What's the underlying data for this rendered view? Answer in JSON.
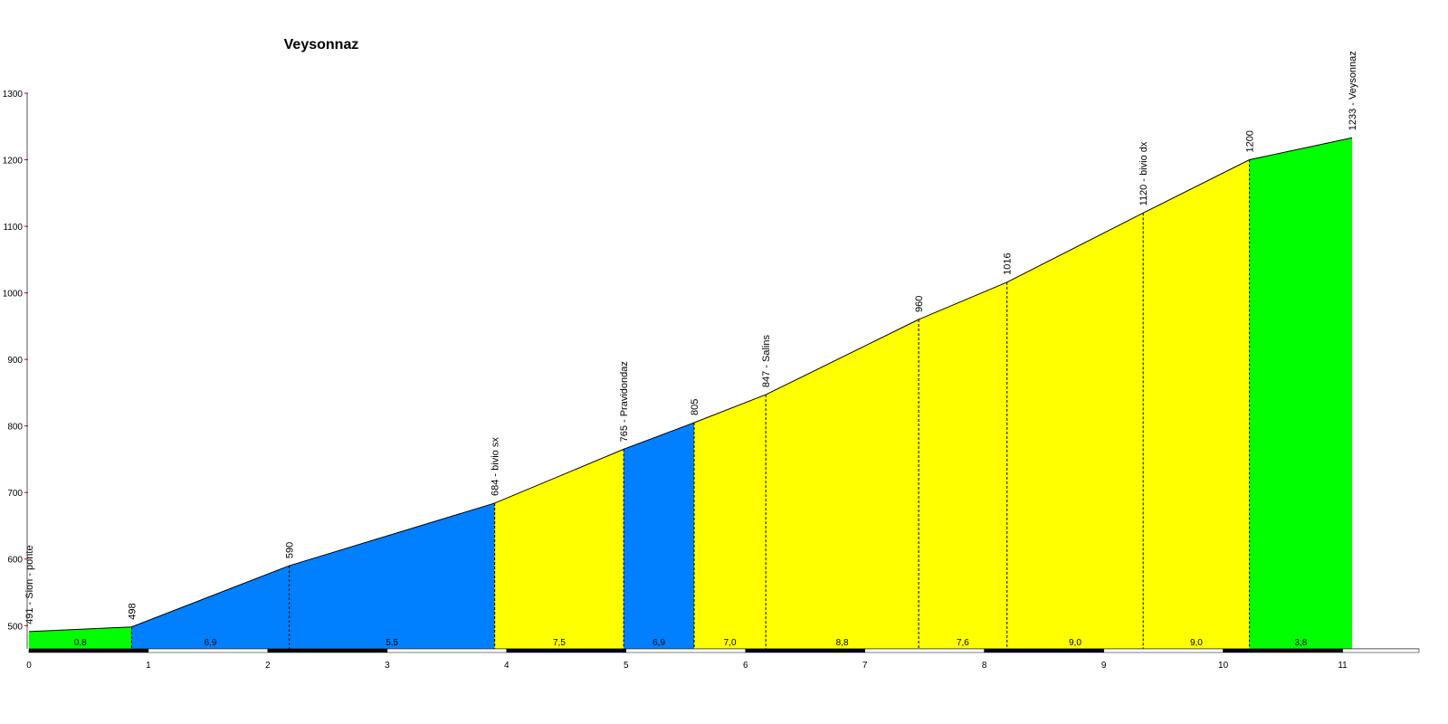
{
  "chart_data": {
    "type": "profile",
    "title": "Veysonnaz",
    "x": [
      0,
      0.86,
      2.18,
      3.9,
      4.98,
      5.57,
      6.17,
      7.45,
      8.19,
      9.33,
      10.22,
      11.08
    ],
    "values": [
      491,
      498,
      590,
      684,
      765,
      805,
      847,
      960,
      1016,
      1120,
      1200,
      1233
    ],
    "value_labels": [
      "491 - Sion - ponte",
      "498",
      "590",
      "684 - bivio sx",
      "765 - Pravidondaz",
      "805",
      "847 - Salins",
      "960",
      "1016",
      "1120 - bivio dx",
      "1200",
      "1233 - Veysonnaz"
    ],
    "segments": {
      "values": [
        0.8,
        6.9,
        5.5,
        7.5,
        6.9,
        7.0,
        8.8,
        7.6,
        9.0,
        9.0,
        3.8
      ],
      "value_labels": [
        "0,8",
        "6,9",
        "5,5",
        "7,5",
        "6,9",
        "7,0",
        "8,8",
        "7,6",
        "9,0",
        "9,0",
        "3,8"
      ],
      "colors": [
        "#00ff00",
        "#0080ff",
        "#0080ff",
        "#ffff00",
        "#0080ff",
        "#ffff00",
        "#ffff00",
        "#ffff00",
        "#ffff00",
        "#ffff00",
        "#00ff00"
      ]
    },
    "xlim": [
      0,
      11.64
    ],
    "ylim": [
      465,
      1300
    ],
    "xticks": [
      0,
      1,
      2,
      3,
      4,
      5,
      6,
      7,
      8,
      9,
      10,
      11
    ],
    "yticks": [
      500,
      600,
      700,
      800,
      900,
      1000,
      1100,
      1200,
      1300
    ]
  }
}
